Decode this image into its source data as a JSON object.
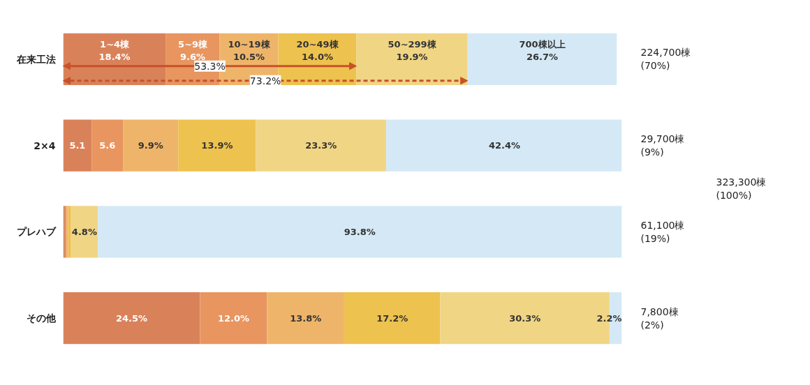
{
  "chart_data": {
    "type": "bar",
    "orientation": "horizontal",
    "stacked": true,
    "categories": [
      "在来工法",
      "2×4",
      "プレハブ",
      "その他"
    ],
    "xlim": [
      0,
      100
    ],
    "tick_labels": "y",
    "grid": false,
    "series": [
      {
        "name": "1~4棟",
        "color": "#d9825a",
        "values": [
          18.4,
          5.1,
          0.3,
          24.5
        ],
        "value_labels": [
          "18.4%",
          "5.1",
          null,
          "24.5%"
        ]
      },
      {
        "name": "5~9棟",
        "color": "#e8955f",
        "values": [
          9.6,
          5.6,
          0.3,
          12.0
        ],
        "value_labels": [
          "9.6%",
          "5.6",
          null,
          "12.0%"
        ]
      },
      {
        "name": "10~19棟",
        "color": "#eeb56a",
        "values": [
          10.5,
          9.9,
          0.3,
          13.8
        ],
        "value_labels": [
          "10.5%",
          "9.9%",
          null,
          "13.8%"
        ]
      },
      {
        "name": "20~49棟",
        "color": "#edc24e",
        "values": [
          14.0,
          13.9,
          0.5,
          17.2
        ],
        "value_labels": [
          "14.0%",
          "13.9%",
          null,
          "17.2%"
        ]
      },
      {
        "name": "50~299棟",
        "color": "#f0d584",
        "values": [
          19.9,
          23.3,
          4.8,
          30.3
        ],
        "value_labels": [
          "19.9%",
          "23.3%",
          "4.8%",
          "30.3%"
        ]
      },
      {
        "name": "700棟以上",
        "color": "#d4e9f5",
        "values": [
          26.7,
          42.4,
          93.8,
          2.2
        ],
        "value_labels": [
          "26.7%",
          "42.4%",
          "93.8%",
          "2.2%"
        ]
      }
    ],
    "annotations": [
      "53.3%",
      "73.2%",
      "224,700棟\n(70%)",
      "29,700棟\n(9%)",
      "61,100棟\n(19%)",
      "7,800棟\n(2%)",
      "323,300棟\n(100%)"
    ]
  }
}
